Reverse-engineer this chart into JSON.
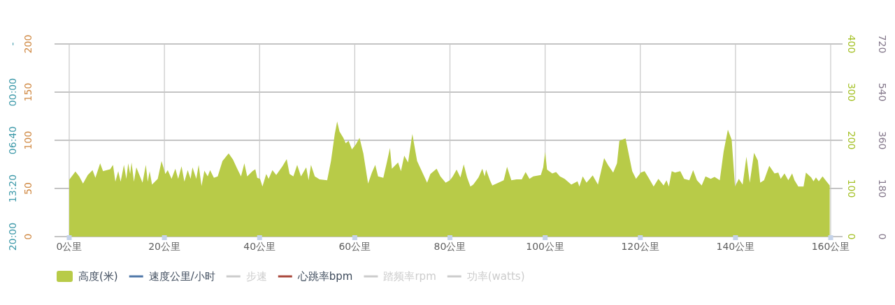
{
  "chart_data": {
    "type": "area",
    "xlim": [
      0,
      160
    ],
    "xticks": [
      {
        "value": 0,
        "label": "0公里"
      },
      {
        "value": 20,
        "label": "20公里"
      },
      {
        "value": 40,
        "label": "40公里"
      },
      {
        "value": 60,
        "label": "60公里"
      },
      {
        "value": 80,
        "label": "80公里"
      },
      {
        "value": 100,
        "label": "100公里"
      },
      {
        "value": 120,
        "label": "120公里"
      },
      {
        "value": 140,
        "label": "140公里"
      },
      {
        "value": 160,
        "label": "160公里"
      }
    ],
    "ylim": [
      0,
      200
    ],
    "yticks": [
      0,
      50,
      100,
      150,
      200
    ],
    "y2lim": [
      0,
      400
    ],
    "y2ticks": [
      0,
      100,
      200,
      300,
      400
    ],
    "y3lim": [
      0,
      720
    ],
    "y3ticks": [
      0,
      180,
      360,
      540,
      720
    ],
    "annotations": [
      "-",
      "00:00",
      "06:40",
      "13:20",
      "20:00"
    ],
    "grid": true,
    "legend": "bottom left",
    "series": [
      {
        "name": "高度(米)",
        "color": "#b8cb48",
        "axis": "y2",
        "x": [
          0,
          1.3,
          2.1,
          2.9,
          3.9,
          4.9,
          5.5,
          6.5,
          7.1,
          7.9,
          8.6,
          9.2,
          9.7,
          10.3,
          10.8,
          11.5,
          12.0,
          12.4,
          12.8,
          13.1,
          13.6,
          14.1,
          15.4,
          16.1,
          16.5,
          16.9,
          17.4,
          18.6,
          19.4,
          20.2,
          20.7,
          21.5,
          22.3,
          22.9,
          23.6,
          24.2,
          24.9,
          25.5,
          25.9,
          26.7,
          27.2,
          27.8,
          28.4,
          29.1,
          29.6,
          30.4,
          31.2,
          32.2,
          33.5,
          34.4,
          35.3,
          36.1,
          36.8,
          37.4,
          38.5,
          39.1,
          39.5,
          40.1,
          40.6,
          41.4,
          41.9,
          42.7,
          43.5,
          44.8,
          45.7,
          46.3,
          47.1,
          47.9,
          48.7,
          49.8,
          50.3,
          50.8,
          51.6,
          52.6,
          54.2,
          55.0,
          55.8,
          56.3,
          56.8,
          57.6,
          58.1,
          58.7,
          59.4,
          60.2,
          61.0,
          61.8,
          62.8,
          63.6,
          64.3,
          64.9,
          66.0,
          66.8,
          67.4,
          67.8,
          68.3,
          69.1,
          69.7,
          70.4,
          71.2,
          72.1,
          73.1,
          75.2,
          75.9,
          77.2,
          78.0,
          79.1,
          80.0,
          80.6,
          81.4,
          82.2,
          82.9,
          83.6,
          84.3,
          84.9,
          86.0,
          86.8,
          87.3,
          87.6,
          88.4,
          88.9,
          90.2,
          91.3,
          92.0,
          92.9,
          94.0,
          95.1,
          95.9,
          96.7,
          97.5,
          99.1,
          99.6,
          100.0,
          100.4,
          101.5,
          102.3,
          103.1,
          104.1,
          105.5,
          106.8,
          107.2,
          107.9,
          108.7,
          110.0,
          111.1,
          112.4,
          113.2,
          114.3,
          115.1,
          115.6,
          116.9,
          118.3,
          119.1,
          120.1,
          120.9,
          121.7,
          122.8,
          123.8,
          124.9,
          125.5,
          126.0,
          126.6,
          127.3,
          128.4,
          129.2,
          130.3,
          131.1,
          131.9,
          132.9,
          133.7,
          134.8,
          135.6,
          136.7,
          137.5,
          138.4,
          139.2,
          139.9,
          140.7,
          141.5,
          142.3,
          143.0,
          143.9,
          144.7,
          145.2,
          146.0,
          147.1,
          148.2,
          149.0,
          149.5,
          150.3,
          151.1,
          151.9,
          152.4,
          153.2,
          154.3,
          154.8,
          155.9,
          156.4,
          156.9,
          157.5,
          158.3,
          159.1,
          159.8
        ],
        "values": [
          118,
          135,
          125,
          110,
          128,
          138,
          122,
          152,
          136,
          138,
          140,
          149,
          114,
          136,
          114,
          149,
          120,
          152,
          130,
          154,
          114,
          144,
          112,
          149,
          114,
          136,
          108,
          120,
          157,
          130,
          138,
          120,
          141,
          120,
          146,
          114,
          138,
          120,
          144,
          120,
          149,
          105,
          137,
          125,
          138,
          122,
          125,
          157,
          173,
          160,
          141,
          125,
          152,
          125,
          136,
          140,
          122,
          120,
          104,
          130,
          120,
          138,
          128,
          146,
          161,
          130,
          125,
          149,
          125,
          144,
          117,
          149,
          125,
          119,
          117,
          157,
          213,
          239,
          218,
          205,
          194,
          199,
          181,
          191,
          205,
          173,
          110,
          133,
          149,
          125,
          122,
          157,
          184,
          141,
          146,
          154,
          136,
          168,
          154,
          213,
          157,
          112,
          130,
          141,
          125,
          112,
          117,
          125,
          139,
          123,
          150,
          123,
          104,
          108,
          123,
          141,
          125,
          139,
          117,
          106,
          112,
          117,
          145,
          117,
          119,
          119,
          134,
          120,
          125,
          128,
          144,
          176,
          139,
          131,
          134,
          125,
          120,
          108,
          115,
          104,
          125,
          112,
          127,
          108,
          163,
          149,
          133,
          152,
          199,
          204,
          136,
          120,
          133,
          136,
          123,
          104,
          120,
          106,
          117,
          104,
          136,
          133,
          136,
          120,
          117,
          138,
          117,
          106,
          125,
          120,
          124,
          117,
          176,
          222,
          201,
          104,
          120,
          108,
          166,
          112,
          174,
          158,
          112,
          117,
          147,
          131,
          133,
          120,
          131,
          117,
          131,
          117,
          104,
          104,
          133,
          123,
          115,
          123,
          115,
          125,
          115,
          106
        ]
      },
      {
        "name": "速度公里/小时",
        "type": "line",
        "color": "#4f77a8"
      },
      {
        "name": "步速",
        "type": "line",
        "color": "#cccccc"
      },
      {
        "name": "心跳率bpm",
        "type": "line",
        "color": "#a9473a"
      },
      {
        "name": "踏频率rpm",
        "type": "line",
        "color": "#cccccc"
      },
      {
        "name": "功率(watts)",
        "type": "line",
        "color": "#cccccc"
      }
    ]
  }
}
